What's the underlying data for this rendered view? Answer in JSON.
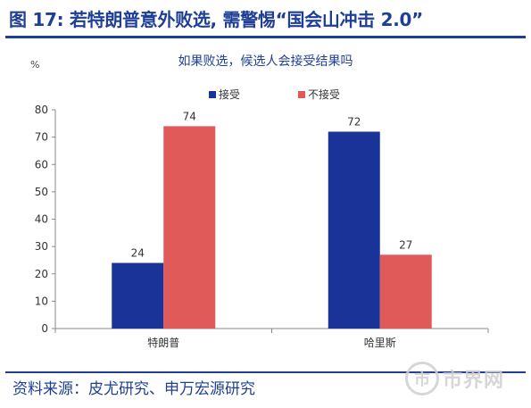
{
  "header": {
    "title": "图 17: 若特朗普意外败选, 需警惕“国会山冲击 2.0”"
  },
  "chart_data": {
    "type": "bar",
    "title": "如果败选，候选人会接受结果吗",
    "unit": "%",
    "categories": [
      "特朗普",
      "哈里斯"
    ],
    "series": [
      {
        "name": "接受",
        "values": [
          24,
          72
        ],
        "color": "#1a3399"
      },
      {
        "name": "不接受",
        "values": [
          74,
          27
        ],
        "color": "#e05a5a"
      }
    ],
    "ylim": [
      0,
      80
    ],
    "yticks": [
      0,
      10,
      20,
      30,
      40,
      50,
      60,
      70,
      80
    ],
    "grid": false,
    "legend_position": "top-center"
  },
  "footer": {
    "source": "资料来源：皮尤研究、申万宏源研究"
  },
  "watermark": {
    "logo_glyph": "市",
    "text": "市界网"
  }
}
